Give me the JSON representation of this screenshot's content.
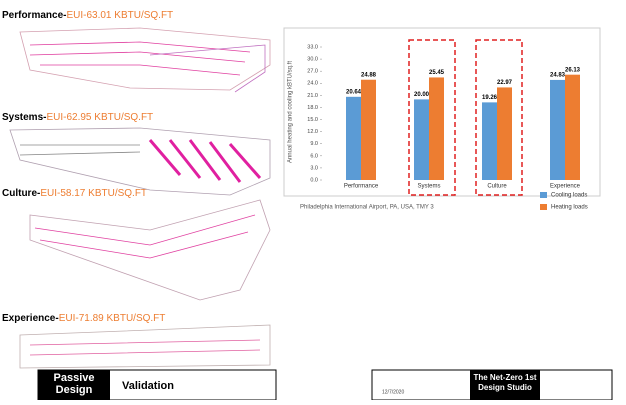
{
  "panels": [
    {
      "name": "Performance-",
      "eui": "EUI-63.01 KBTU/SQ.FT"
    },
    {
      "name": "Systems-",
      "eui": "EUI-62.95 KBTU/SQ.FT"
    },
    {
      "name": "Culture-",
      "eui": "EUI-58.17 KBTU/SQ.FT"
    },
    {
      "name": "Experience-",
      "eui": "EUI-71.89 KBTU/SQ.FT"
    }
  ],
  "footer": {
    "left_head": "Passive Design",
    "left_title": "Validation",
    "studio": "The Net-Zero 1st Design Studio",
    "date": "12/7/2020"
  },
  "chart_data": {
    "type": "bar",
    "categories": [
      "Performance",
      "Systems",
      "Culture",
      "Experience"
    ],
    "series": [
      {
        "name": "Cooling loads",
        "color": "#5b9bd5",
        "values": [
          20.64,
          20.0,
          19.26,
          24.83
        ],
        "value_labels": [
          "20.64",
          "20.00",
          "19.26",
          "24.83"
        ]
      },
      {
        "name": "Heating loads",
        "color": "#ed7d31",
        "values": [
          24.88,
          25.45,
          22.97,
          26.13
        ],
        "value_labels": [
          "24.88",
          "25.45",
          "22.97",
          "26.13"
        ]
      }
    ],
    "ylabel": "Annual heating and cooling kBTU/sq.ft",
    "note": "Philadelphia International Airport, PA, USA, TMY 3",
    "ylim": [
      0,
      33
    ],
    "yticks": [
      {
        "value": 0,
        "label": "0.0"
      },
      {
        "value": 3,
        "label": "3.0"
      },
      {
        "value": 6,
        "label": "6.0"
      },
      {
        "value": 9,
        "label": "9.0"
      },
      {
        "value": 12,
        "label": "12.0"
      },
      {
        "value": 15,
        "label": "15.0"
      },
      {
        "value": 18,
        "label": "18.0"
      },
      {
        "value": 21,
        "label": "21.0"
      },
      {
        "value": 24,
        "label": "24.0"
      },
      {
        "value": 27,
        "label": "27.0"
      },
      {
        "value": 30,
        "label": "30.0"
      },
      {
        "value": 33,
        "label": "33.0"
      }
    ],
    "legend": "bottom-right"
  }
}
